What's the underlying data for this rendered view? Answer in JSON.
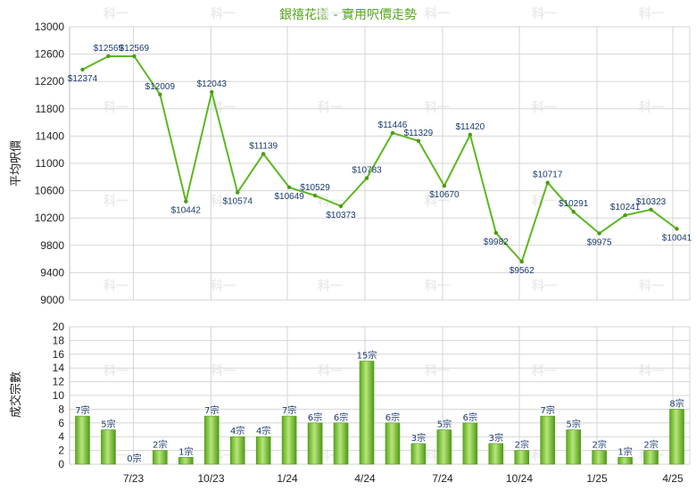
{
  "chart_data": [
    {
      "type": "line",
      "title": "銀禧花園 - 實用呎價走勢",
      "xlabel": "",
      "ylabel": "平均呎價",
      "ylim": [
        9000,
        13000
      ],
      "yticks": [
        9000,
        9400,
        9800,
        10200,
        10600,
        11000,
        11400,
        11800,
        12200,
        12600,
        13000
      ],
      "x_tick_labels": [
        "7/23",
        "10/23",
        "1/24",
        "4/24",
        "7/24",
        "10/24",
        "1/25",
        "4/25"
      ],
      "grid": true,
      "series": [
        {
          "color": "#5cb820",
          "values": [
            12374,
            12569,
            12569,
            12009,
            10442,
            12043,
            10574,
            11139,
            10649,
            10529,
            10373,
            10783,
            11446,
            11329,
            10670,
            11420,
            9982,
            9562,
            10717,
            10291,
            9975,
            10241,
            10323,
            10041
          ],
          "labels": [
            "$12374",
            "$12569",
            "$12569",
            "$12009",
            "$10442",
            "$12043",
            "$10574",
            "$11139",
            "$10649",
            "$10529",
            "$10373",
            "$10783",
            "$11446",
            "$11329",
            "$10670",
            "$11420",
            "$9982",
            "$9562",
            "$10717",
            "$10291",
            "$9975",
            "$10241",
            "$10323",
            "$10041"
          ]
        }
      ]
    },
    {
      "type": "bar",
      "title": "",
      "xlabel": "",
      "ylabel": "成交宗數",
      "ylim": [
        0,
        20
      ],
      "yticks": [
        0,
        2,
        4,
        6,
        8,
        10,
        12,
        14,
        16,
        18,
        20
      ],
      "x_tick_labels": [
        "7/23",
        "10/23",
        "1/24",
        "4/24",
        "7/24",
        "10/24",
        "1/25",
        "4/25"
      ],
      "grid": true,
      "series": [
        {
          "color": "#6cc22a",
          "values": [
            7,
            5,
            0,
            2,
            1,
            7,
            4,
            4,
            7,
            6,
            6,
            15,
            6,
            3,
            5,
            6,
            3,
            2,
            7,
            5,
            2,
            1,
            2,
            8
          ],
          "labels": [
            "7宗",
            "5宗",
            "0宗",
            "2宗",
            "1宗",
            "7宗",
            "4宗",
            "4宗",
            "7宗",
            "6宗",
            "6宗",
            "15宗",
            "6宗",
            "3宗",
            "5宗",
            "6宗",
            "3宗",
            "2宗",
            "7宗",
            "5宗",
            "2宗",
            "1宗",
            "2宗",
            "8宗"
          ]
        }
      ]
    }
  ],
  "watermark": "科一"
}
